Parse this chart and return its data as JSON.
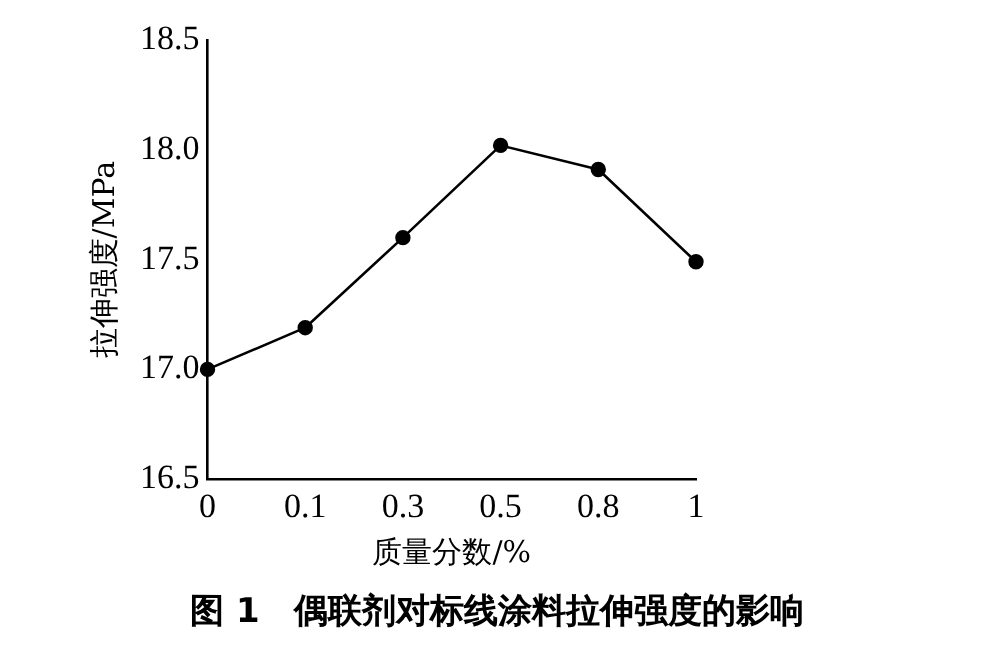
{
  "chart_data": {
    "type": "line",
    "xlabel": "质量分数/%",
    "ylabel": "拉伸强度/MPa",
    "categories": [
      "0",
      "0.1",
      "0.3",
      "0.5",
      "0.8",
      "1"
    ],
    "series": [
      {
        "color": "#000000",
        "values": [
          17.0,
          17.19,
          17.6,
          18.02,
          17.91,
          17.49
        ]
      }
    ],
    "ylim": [
      16.5,
      18.5
    ],
    "yticks": [
      {
        "value": 16.5,
        "label": "16.5"
      },
      {
        "value": 17,
        "label": "17.0"
      },
      {
        "value": 17.5,
        "label": "17.5"
      },
      {
        "value": 18,
        "label": "18.0"
      },
      {
        "value": 18.5,
        "label": "18.5"
      }
    ],
    "grid": false,
    "legend": false,
    "marker": "circle",
    "line_style": "solid",
    "annotations": [
      "图 1　偶联剂对标线涂料拉伸强度的影响"
    ]
  }
}
